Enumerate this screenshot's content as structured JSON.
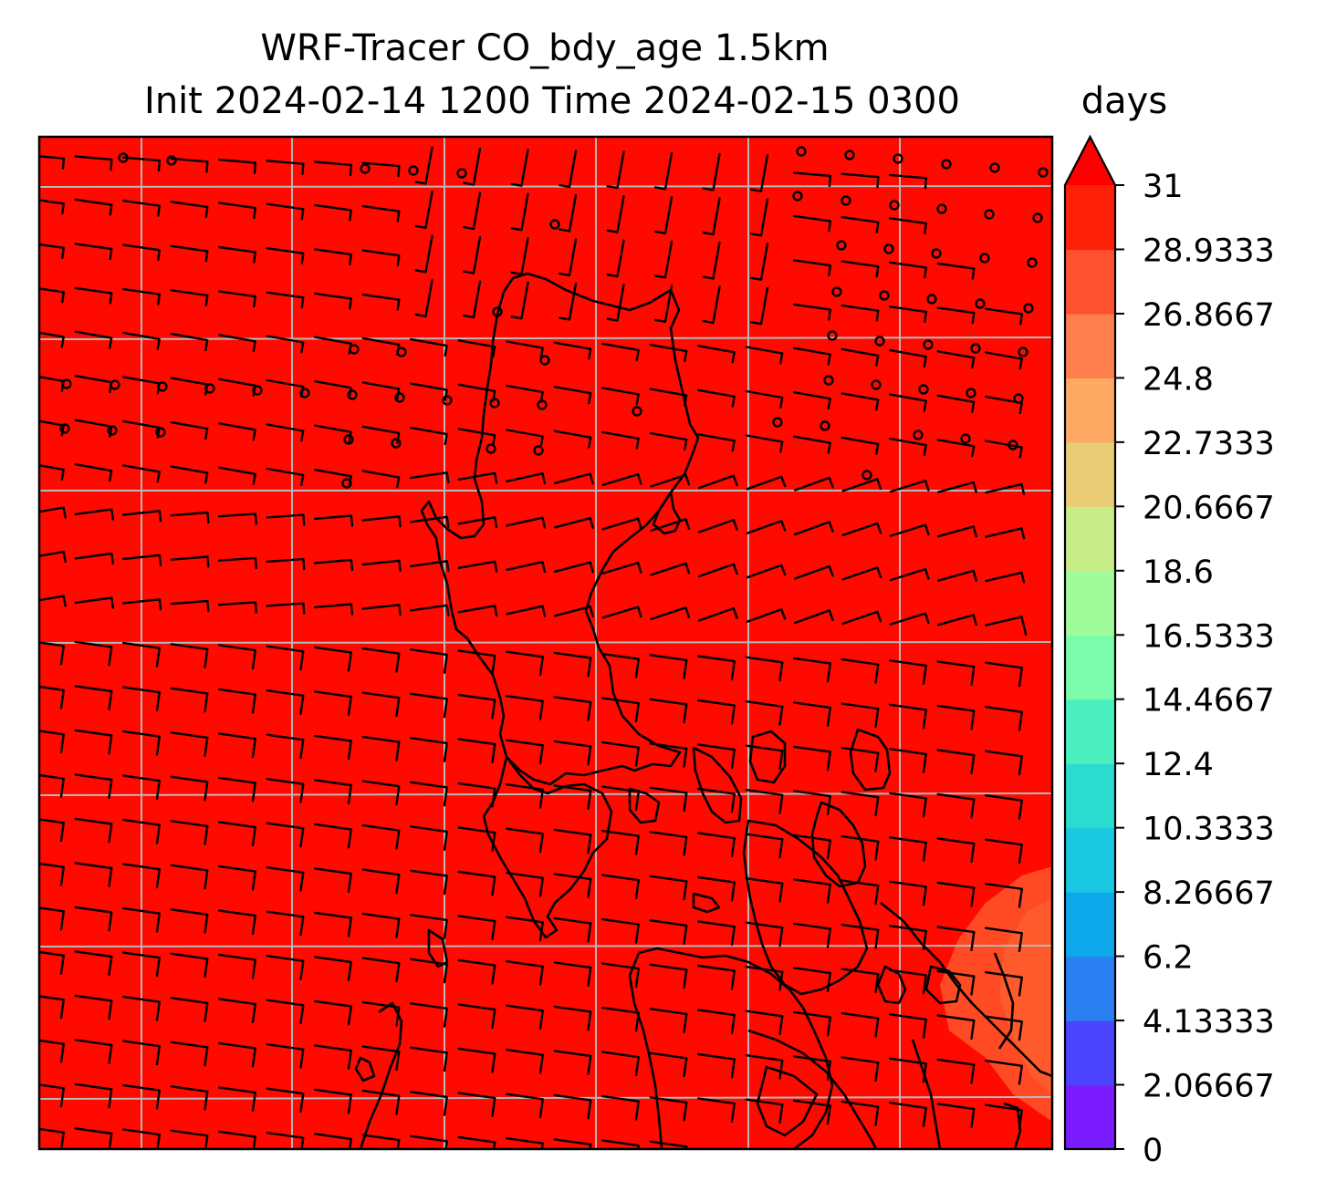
{
  "figure": {
    "title_line1": "WRF-Tracer CO_bdy_age 1.5km",
    "title_line2": "Init 2024-02-14 1200 Time 2024-02-15 0300",
    "units": "days"
  },
  "colorbar": {
    "tick_labels": [
      "0",
      "2.06667",
      "4.13333",
      "6.2",
      "8.26667",
      "10.3333",
      "12.4",
      "14.4667",
      "16.5333",
      "18.6",
      "20.6667",
      "22.7333",
      "24.8",
      "26.8667",
      "28.9333",
      "31"
    ],
    "level_colors": [
      "#7a1cff",
      "#4a44ff",
      "#2a80f2",
      "#0ca8ea",
      "#17c8e0",
      "#2adbd0",
      "#4bf0be",
      "#7afcac",
      "#a0fc9a",
      "#c8ec88",
      "#e8cd76",
      "#ffaa64",
      "#ff7e4e",
      "#ff5030",
      "#ff2008"
    ],
    "extend": "max",
    "extend_color": "#ff0000"
  },
  "map": {
    "field_color": "#ff0a00",
    "lower_age_patch_color": "#ff4a24",
    "gridline_color": "#b8b8b8",
    "coastline_color": "#000000",
    "barb_color": "#000000"
  }
}
